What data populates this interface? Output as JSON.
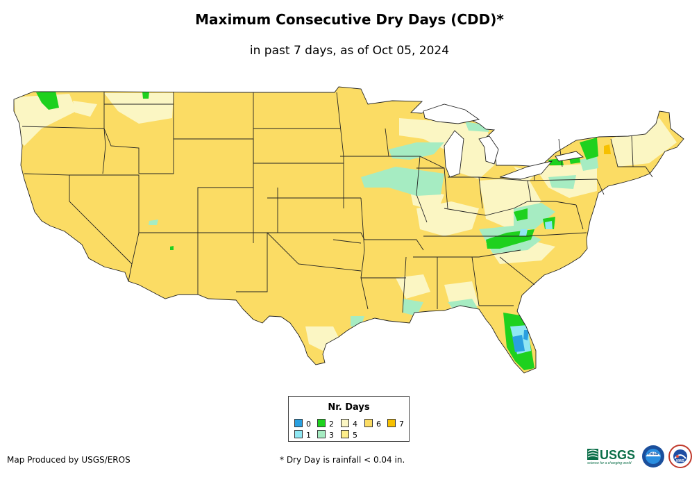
{
  "title": "Maximum Consecutive Dry Days (CDD)*",
  "subtitle": "in past 7 days, as of Oct 05, 2024",
  "legend": {
    "title": "Nr. Days",
    "items": [
      {
        "label": "0",
        "color": "#2aa0e0"
      },
      {
        "label": "1",
        "color": "#8fe7f3"
      },
      {
        "label": "2",
        "color": "#1ed11e"
      },
      {
        "label": "3",
        "color": "#a6ecc2"
      },
      {
        "label": "4",
        "color": "#fbf6c3"
      },
      {
        "label": "5",
        "color": "#fdee8a"
      },
      {
        "label": "6",
        "color": "#fbdc64"
      },
      {
        "label": "7",
        "color": "#f6c000"
      }
    ]
  },
  "credit": "Map Produced by USGS/EROS",
  "footnote": "* Dry Day is rainfall < 0.04 in.",
  "logos": {
    "usgs_text": "USGS",
    "usgs_tagline": "science for a changing world",
    "noaa_text": "noaa",
    "nws_text": "NWS"
  }
}
